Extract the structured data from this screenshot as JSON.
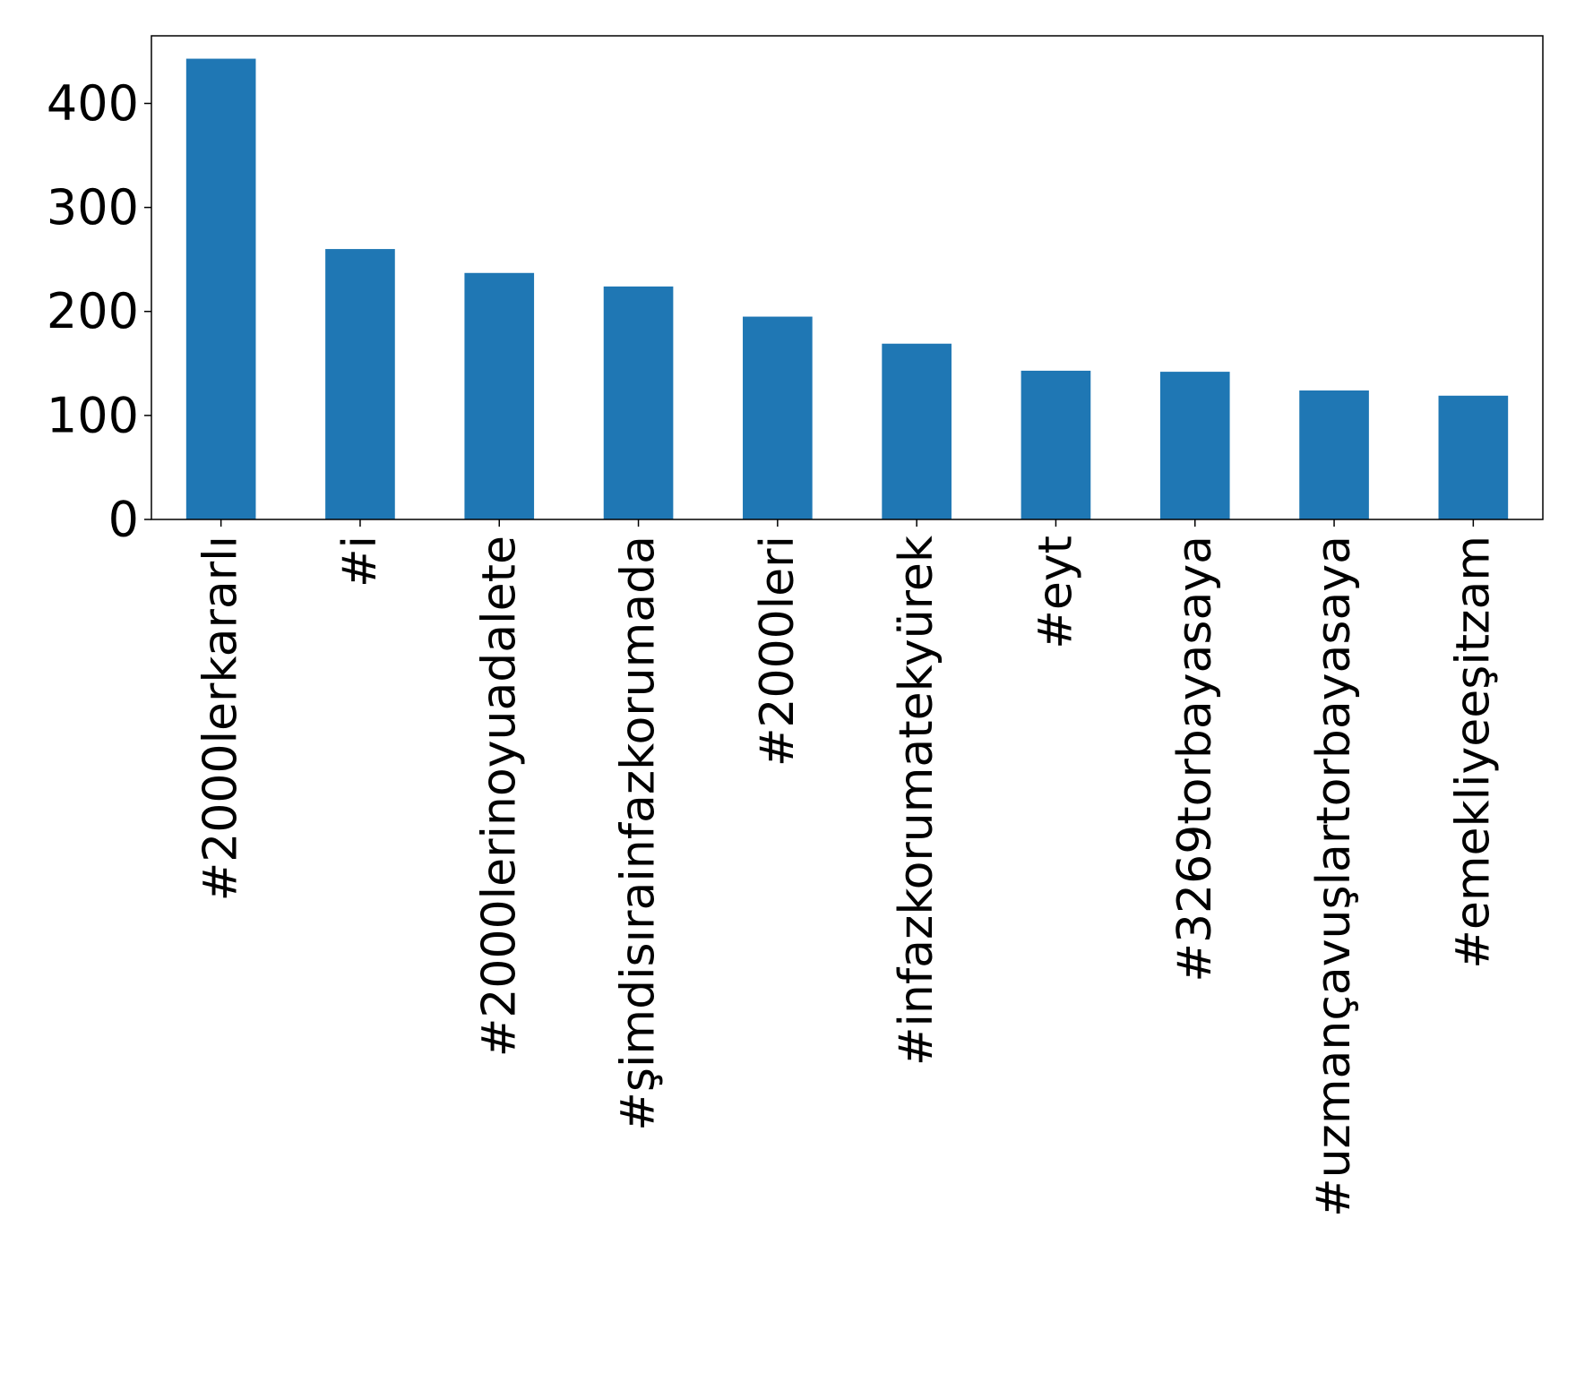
{
  "chart_data": {
    "type": "bar",
    "title": "",
    "xlabel": "",
    "ylabel": "",
    "categories": [
      "#2000lerkararlı",
      "#i",
      "#2000lerinoyuadalete",
      "#şimdisırainfazkorumada",
      "#2000leri",
      "#infazkorumatekyürek",
      "#eyt",
      "#3269torbayasaya",
      "#uzmançavuşlartorbayasaya",
      "#emekliyeeşitzam"
    ],
    "values": [
      443,
      260,
      237,
      224,
      195,
      169,
      143,
      142,
      124,
      119
    ],
    "ylim": [
      0,
      465
    ],
    "yticks": [
      0,
      100,
      200,
      300,
      400
    ],
    "bar_color": "#1f77b4",
    "grid": false,
    "legend": "none"
  }
}
